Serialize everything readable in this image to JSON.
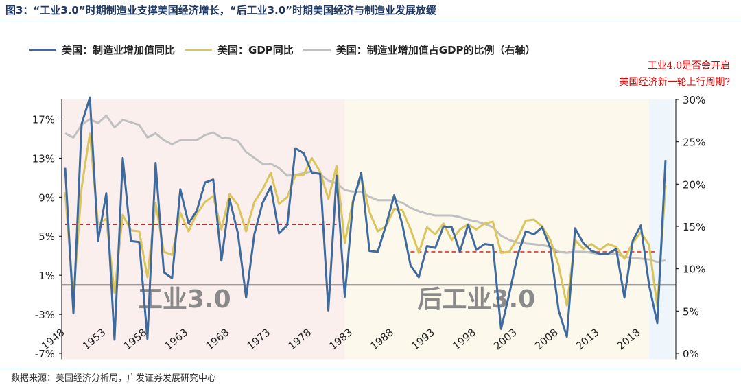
{
  "figure_title": "图3：“工业3.0”时期制造业支撑美国经济增长，“后工业3.0”时期美国经济与制造业发展放缓",
  "source": "数据来源：美国经济分析局，广发证券发展研究中心",
  "annotation": [
    "工业4.0是否会开启",
    "美国经济新一轮上行周期?"
  ],
  "colors": {
    "blue": "#3f6a9e",
    "yellow": "#d9c55b",
    "gray": "#c0c0c0",
    "red_dash": "#e02020",
    "era1_bg": "#fbefee",
    "era2_bg": "#fdf8ec",
    "era3_bg": "#eef6fc"
  },
  "chart_data": {
    "type": "line",
    "legend_position": "top",
    "grid": false,
    "x": [
      1948,
      1949,
      1950,
      1951,
      1952,
      1953,
      1954,
      1955,
      1956,
      1957,
      1958,
      1959,
      1960,
      1961,
      1962,
      1963,
      1964,
      1965,
      1966,
      1967,
      1968,
      1969,
      1970,
      1971,
      1972,
      1973,
      1974,
      1975,
      1976,
      1977,
      1978,
      1979,
      1980,
      1981,
      1982,
      1983,
      1984,
      1985,
      1986,
      1987,
      1988,
      1989,
      1990,
      1991,
      1992,
      1993,
      1994,
      1995,
      1996,
      1997,
      1998,
      1999,
      2000,
      2001,
      2002,
      2003,
      2004,
      2005,
      2006,
      2007,
      2008,
      2009,
      2010,
      2011,
      2012,
      2013,
      2014,
      2015,
      2016,
      2017,
      2018,
      2019,
      2020,
      2021
    ],
    "x_ticks": [
      "1948",
      "1953",
      "1958",
      "1963",
      "1968",
      "1973",
      "1978",
      "1983",
      "1988",
      "1993",
      "1998",
      "2003",
      "2008",
      "2013",
      "2018"
    ],
    "y_left_ticks": [
      "17%",
      "13%",
      "9%",
      "5%",
      "1%",
      "-3%",
      "-7%"
    ],
    "y_left_range": [
      -7,
      19
    ],
    "y_right_ticks": [
      "30%",
      "25%",
      "20%",
      "15%",
      "10%",
      "5%",
      "0%"
    ],
    "y_right_range": [
      0,
      30
    ],
    "series": [
      {
        "name": "美国：制造业增加值同比",
        "axis": "left",
        "color": "#3f6a9e",
        "values": [
          12,
          -2.9,
          16.5,
          19.2,
          4.5,
          9.4,
          -5.6,
          13,
          4.5,
          4.4,
          -5.5,
          12.5,
          1.3,
          0.7,
          9.8,
          6.3,
          7.6,
          10.5,
          10.8,
          2.5,
          8.8,
          5.3,
          -1.3,
          5.2,
          8.4,
          10.1,
          5.3,
          6.1,
          14,
          13.5,
          11.5,
          11.4,
          -2.6,
          11.2,
          -1.2,
          8.5,
          11.5,
          3.5,
          3.4,
          6.1,
          9.2,
          6.2,
          2,
          0.8,
          4,
          3.8,
          6,
          5.9,
          3.4,
          6.2,
          3.6,
          4.2,
          4.1,
          -4.5,
          -0.9,
          3,
          5.5,
          5.2,
          5.9,
          3.8,
          -2.6,
          -5.3,
          5.8,
          4.3,
          3.5,
          3.2,
          3.2,
          3.7,
          -1.3,
          4.5,
          6.1,
          0,
          -3.9,
          12.8
        ]
      },
      {
        "name": "美国：GDP同比",
        "axis": "left",
        "color": "#d9c55b",
        "values": [
          9.5,
          -1.4,
          10,
          15.5,
          6.2,
          6.8,
          -0.8,
          7.2,
          5.6,
          5.5,
          0.8,
          8.4,
          3.4,
          3.1,
          7.4,
          5.5,
          7.3,
          8.5,
          9.1,
          5.7,
          9.3,
          8.2,
          5.5,
          8.5,
          9.8,
          11.5,
          8.3,
          9,
          11.2,
          11.3,
          13,
          11.6,
          8.8,
          12.2,
          4.3,
          8.7,
          11.1,
          7.5,
          5.5,
          6,
          7.8,
          7.7,
          5.7,
          3.3,
          5.9,
          5.2,
          6.3,
          4.6,
          5.7,
          6.2,
          5.7,
          6.3,
          6.5,
          3.3,
          3.4,
          4.8,
          6.6,
          6.7,
          6,
          4.6,
          2,
          -2.1,
          4.6,
          3.7,
          4.2,
          3.6,
          4.2,
          3.9,
          2.7,
          4.3,
          5.4,
          4.1,
          -2.2,
          10.2
        ]
      },
      {
        "name": "美国：制造业增加值占GDP的比例（右轴）",
        "axis": "right",
        "color": "#c0c0c0",
        "values": [
          26,
          25.5,
          27,
          27.7,
          27.2,
          28.1,
          26.7,
          27.6,
          27.3,
          27,
          25.5,
          26,
          25.2,
          24.7,
          25.2,
          25.2,
          25.2,
          25.8,
          26.1,
          25.5,
          25.4,
          25.1,
          23.8,
          23.1,
          22.4,
          22.4,
          21.9,
          21,
          21.1,
          21.3,
          21.5,
          21.2,
          20.4,
          20.1,
          19.3,
          19.1,
          19.1,
          18.5,
          18.1,
          18.1,
          18.1,
          17.8,
          17.2,
          16.8,
          16.5,
          16.3,
          16.3,
          16.3,
          16.1,
          15.8,
          15.6,
          15.3,
          14.9,
          13.9,
          13.4,
          13.1,
          13,
          12.9,
          12.8,
          12.6,
          12,
          11.9,
          12,
          12,
          11.9,
          11.7,
          11.8,
          11.8,
          11.4,
          11.3,
          11.2,
          11.1,
          10.8,
          11
        ]
      }
    ],
    "reference_lines": [
      {
        "x_start": 1948,
        "x_end": 1981,
        "value": 6.2,
        "axis": "left"
      },
      {
        "x_start": 1990,
        "x_end": 2020,
        "value": 3.4,
        "axis": "left"
      }
    ],
    "regions": [
      {
        "label": "工业3.0",
        "x_start": 1948,
        "x_end": 1982
      },
      {
        "label": "后工业3.0",
        "x_start": 1982,
        "x_end": 2019
      },
      {
        "label": "",
        "x_start": 2019,
        "x_end": 2021
      }
    ]
  }
}
